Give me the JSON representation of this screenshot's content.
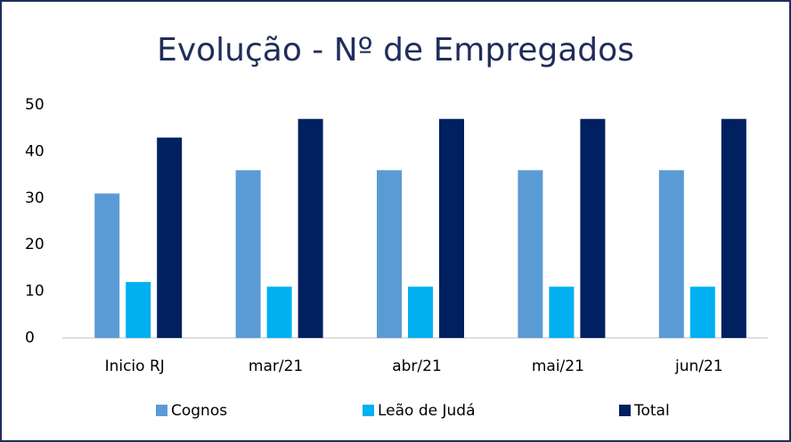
{
  "chart_data": {
    "type": "bar",
    "title": "Evolução - Nº de Empregados",
    "categories": [
      "Inicio RJ",
      "mar/21",
      "abr/21",
      "mai/21",
      "jun/21"
    ],
    "series": [
      {
        "name": "Cognos",
        "color": "#5b9bd5",
        "values": [
          31,
          36,
          36,
          36,
          36
        ]
      },
      {
        "name": "Leão de Judá",
        "color": "#00b0f0",
        "values": [
          12,
          11,
          11,
          11,
          11
        ]
      },
      {
        "name": "Total",
        "color": "#002060",
        "values": [
          43,
          47,
          47,
          47,
          47
        ]
      }
    ],
    "ylim": [
      0,
      50
    ],
    "yticks": [
      0,
      10,
      20,
      30,
      40,
      50
    ],
    "grid": false,
    "legend": "bottom"
  }
}
